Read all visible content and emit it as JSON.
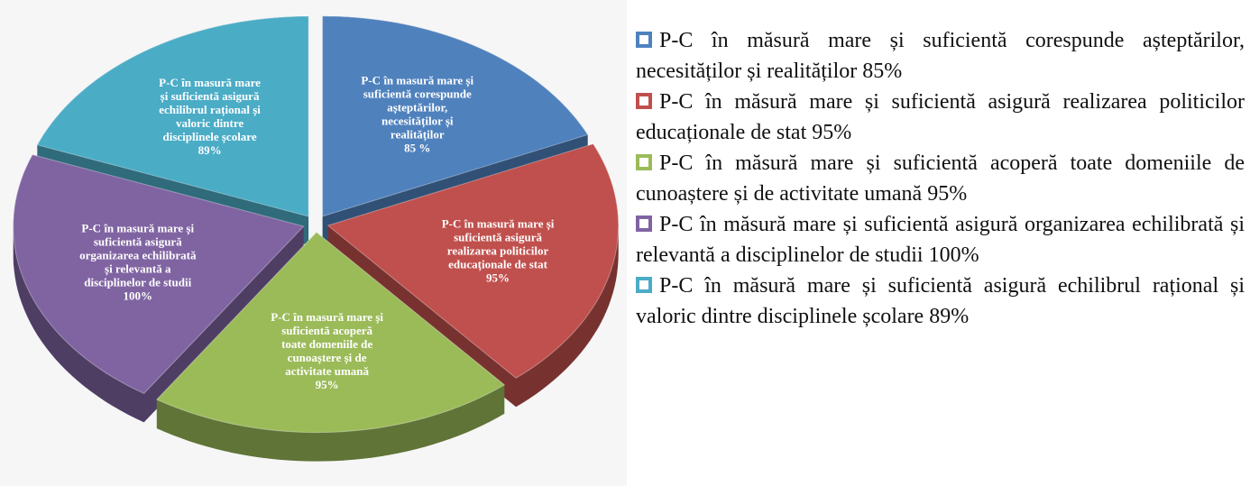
{
  "chart_data": {
    "type": "pie",
    "categories": [
      "P-C în măsură mare și suficientă corespunde așteptărilor, necesităților și realităților",
      "P-C în măsură mare și suficientă asigură realizarea politicilor educaționale de stat",
      "P-C în măsură mare și suficientă acoperă toate domeniile de cunoaștere și de activitate umană",
      "P-C în măsură mare și suficientă asigură organizarea echilibrată și relevantă a disciplinelor de studii",
      "P-C în măsură mare și suficientă asigură echilibrul rațional și valoric dintre disciplinele școlare"
    ],
    "values": [
      85,
      95,
      95,
      100,
      89
    ],
    "value_labels": [
      "85 %",
      "95%",
      "95%",
      "100%",
      "89%"
    ],
    "legend_value_labels": [
      "85%",
      "95%",
      "95%",
      "100%",
      "89%"
    ],
    "slice_labels": [
      [
        "P-C în masură mare și",
        "suficientă corespunde",
        "așteptărilor,",
        "necesităților și",
        "realităților"
      ],
      [
        "P-C în masură mare și",
        "suficientă asigură",
        "realizarea politicilor",
        "educaționale de stat"
      ],
      [
        "P-C în masură mare și",
        "suficientă acoperă",
        "toate domeniile de",
        "cunoaștere și de",
        "activitate umană"
      ],
      [
        "P-C în masură mare și",
        "suficientă asigură",
        "organizarea echilibrată",
        "și relevantă a",
        "disciplinelor de studii"
      ],
      [
        "P-C în masură mare",
        "și suficientă asigură",
        "echilibrul rațional și",
        "valoric dintre",
        "disciplinele școlare"
      ]
    ],
    "colors": [
      "#4f81bd",
      "#c0504d",
      "#9bbb59",
      "#8064a2",
      "#4bacc6"
    ]
  }
}
